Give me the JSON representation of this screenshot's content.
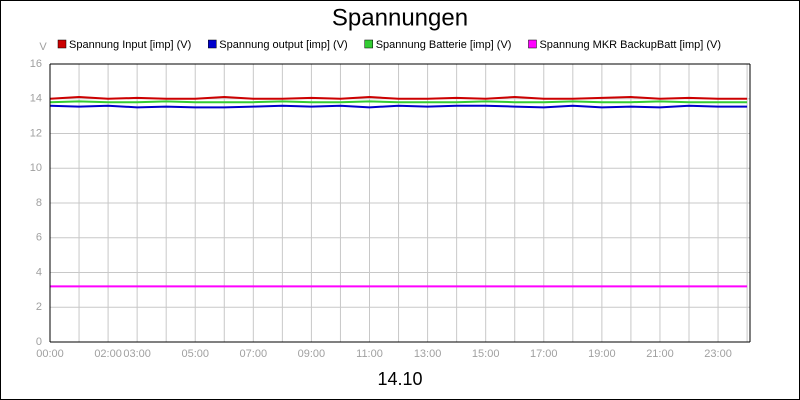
{
  "chart_data": {
    "type": "line",
    "title": "Spannungen",
    "xlabel": "14.10",
    "ylabel": "V",
    "x": [
      0,
      1,
      2,
      3,
      4,
      5,
      6,
      7,
      8,
      9,
      10,
      11,
      12,
      13,
      14,
      15,
      16,
      17,
      18,
      19,
      20,
      21,
      22,
      23,
      24
    ],
    "series": [
      {
        "name": "Spannung Input [imp] (V)",
        "color": "#cc0000",
        "values": [
          14.0,
          14.1,
          14.0,
          14.05,
          14.0,
          14.0,
          14.1,
          14.0,
          14.0,
          14.05,
          14.0,
          14.1,
          14.0,
          14.0,
          14.05,
          14.0,
          14.1,
          14.0,
          14.0,
          14.05,
          14.1,
          14.0,
          14.05,
          14.0,
          14.0
        ]
      },
      {
        "name": "Spannung output [imp] (V)",
        "color": "#0000cc",
        "values": [
          13.6,
          13.55,
          13.6,
          13.5,
          13.55,
          13.5,
          13.5,
          13.55,
          13.6,
          13.55,
          13.6,
          13.5,
          13.6,
          13.55,
          13.6,
          13.6,
          13.55,
          13.5,
          13.6,
          13.5,
          13.55,
          13.5,
          13.6,
          13.55,
          13.55
        ]
      },
      {
        "name": "Spannung Batterie [imp] (V)",
        "color": "#33cc33",
        "values": [
          13.8,
          13.85,
          13.8,
          13.8,
          13.85,
          13.8,
          13.8,
          13.8,
          13.85,
          13.8,
          13.8,
          13.85,
          13.8,
          13.8,
          13.8,
          13.85,
          13.8,
          13.8,
          13.85,
          13.8,
          13.8,
          13.85,
          13.8,
          13.8,
          13.8
        ]
      },
      {
        "name": "Spannung MKR BackupBatt [imp] (V)",
        "color": "#ff00ff",
        "values": [
          3.2,
          3.2,
          3.2,
          3.2,
          3.2,
          3.2,
          3.2,
          3.2,
          3.2,
          3.2,
          3.2,
          3.2,
          3.2,
          3.2,
          3.2,
          3.2,
          3.2,
          3.2,
          3.2,
          3.2,
          3.2,
          3.2,
          3.2,
          3.2,
          3.2
        ]
      }
    ],
    "xlim": [
      0,
      24.1
    ],
    "xticks": [
      {
        "value": 0,
        "label": "00:00"
      },
      {
        "value": 2,
        "label": "02:00"
      },
      {
        "value": 3,
        "label": "03:00"
      },
      {
        "value": 5,
        "label": "05:00"
      },
      {
        "value": 7,
        "label": "07:00"
      },
      {
        "value": 9,
        "label": "09:00"
      },
      {
        "value": 11,
        "label": "11:00"
      },
      {
        "value": 13,
        "label": "13:00"
      },
      {
        "value": 15,
        "label": "15:00"
      },
      {
        "value": 17,
        "label": "17:00"
      },
      {
        "value": 19,
        "label": "19:00"
      },
      {
        "value": 21,
        "label": "21:00"
      },
      {
        "value": 23,
        "label": "23:00"
      }
    ],
    "x_grid": [
      1,
      4,
      6,
      8,
      10,
      12,
      14,
      16,
      18,
      20,
      22,
      24
    ],
    "ylim": [
      0,
      16
    ],
    "yticks": [
      0,
      2,
      4,
      6,
      8,
      10,
      12,
      14,
      16
    ],
    "grid": true
  }
}
